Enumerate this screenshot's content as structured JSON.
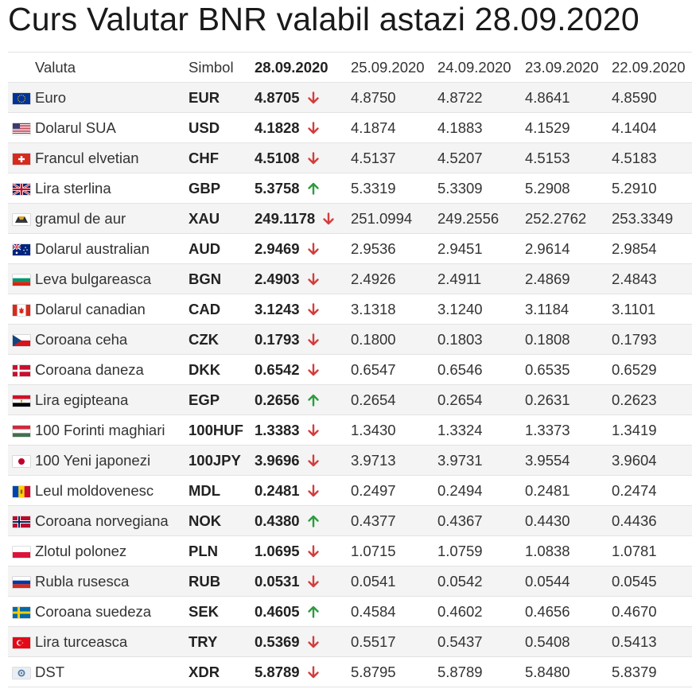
{
  "title": "Curs Valutar BNR valabil astazi 28.09.2020",
  "colors": {
    "down": "#d43c3c",
    "up": "#2e9b3e",
    "row_alt": "#f4f4f4"
  },
  "header": {
    "valuta": "Valuta",
    "simbol": "Simbol",
    "dates": [
      "28.09.2020",
      "25.09.2020",
      "24.09.2020",
      "23.09.2020",
      "22.09.2020"
    ]
  },
  "rows": [
    {
      "flag": "eu-flag-icon",
      "name": "Euro",
      "symbol": "EUR",
      "current": "4.8705",
      "trend": "down",
      "history": [
        "4.8750",
        "4.8722",
        "4.8641",
        "4.8590"
      ]
    },
    {
      "flag": "us-flag-icon",
      "name": "Dolarul SUA",
      "symbol": "USD",
      "current": "4.1828",
      "trend": "down",
      "history": [
        "4.1874",
        "4.1883",
        "4.1529",
        "4.1404"
      ]
    },
    {
      "flag": "ch-flag-icon",
      "name": "Francul elvetian",
      "symbol": "CHF",
      "current": "4.5108",
      "trend": "down",
      "history": [
        "4.5137",
        "4.5207",
        "4.5153",
        "4.5183"
      ]
    },
    {
      "flag": "gb-flag-icon",
      "name": "Lira sterlina",
      "symbol": "GBP",
      "current": "5.3758",
      "trend": "up",
      "history": [
        "5.3319",
        "5.3309",
        "5.2908",
        "5.2910"
      ]
    },
    {
      "flag": "gold-icon",
      "name": "gramul de aur",
      "symbol": "XAU",
      "current": "249.1178",
      "trend": "down",
      "history": [
        "251.0994",
        "249.2556",
        "252.2762",
        "253.3349"
      ]
    },
    {
      "flag": "au-flag-icon",
      "name": "Dolarul australian",
      "symbol": "AUD",
      "current": "2.9469",
      "trend": "down",
      "history": [
        "2.9536",
        "2.9451",
        "2.9614",
        "2.9854"
      ]
    },
    {
      "flag": "bg-flag-icon",
      "name": "Leva bulgareasca",
      "symbol": "BGN",
      "current": "2.4903",
      "trend": "down",
      "history": [
        "2.4926",
        "2.4911",
        "2.4869",
        "2.4843"
      ]
    },
    {
      "flag": "ca-flag-icon",
      "name": "Dolarul canadian",
      "symbol": "CAD",
      "current": "3.1243",
      "trend": "down",
      "history": [
        "3.1318",
        "3.1240",
        "3.1184",
        "3.1101"
      ]
    },
    {
      "flag": "cz-flag-icon",
      "name": "Coroana ceha",
      "symbol": "CZK",
      "current": "0.1793",
      "trend": "down",
      "history": [
        "0.1800",
        "0.1803",
        "0.1808",
        "0.1793"
      ]
    },
    {
      "flag": "dk-flag-icon",
      "name": "Coroana daneza",
      "symbol": "DKK",
      "current": "0.6542",
      "trend": "down",
      "history": [
        "0.6547",
        "0.6546",
        "0.6535",
        "0.6529"
      ]
    },
    {
      "flag": "eg-flag-icon",
      "name": "Lira egipteana",
      "symbol": "EGP",
      "current": "0.2656",
      "trend": "up",
      "history": [
        "0.2654",
        "0.2654",
        "0.2631",
        "0.2623"
      ]
    },
    {
      "flag": "hu-flag-icon",
      "name": "100 Forinti maghiari",
      "symbol": "100HUF",
      "current": "1.3383",
      "trend": "down",
      "history": [
        "1.3430",
        "1.3324",
        "1.3373",
        "1.3419"
      ]
    },
    {
      "flag": "jp-flag-icon",
      "name": "100 Yeni japonezi",
      "symbol": "100JPY",
      "current": "3.9696",
      "trend": "down",
      "history": [
        "3.9713",
        "3.9731",
        "3.9554",
        "3.9604"
      ]
    },
    {
      "flag": "md-flag-icon",
      "name": "Leul moldovenesc",
      "symbol": "MDL",
      "current": "0.2481",
      "trend": "down",
      "history": [
        "0.2497",
        "0.2494",
        "0.2481",
        "0.2474"
      ]
    },
    {
      "flag": "no-flag-icon",
      "name": "Coroana norvegiana",
      "symbol": "NOK",
      "current": "0.4380",
      "trend": "up",
      "history": [
        "0.4377",
        "0.4367",
        "0.4430",
        "0.4436"
      ]
    },
    {
      "flag": "pl-flag-icon",
      "name": "Zlotul polonez",
      "symbol": "PLN",
      "current": "1.0695",
      "trend": "down",
      "history": [
        "1.0715",
        "1.0759",
        "1.0838",
        "1.0781"
      ]
    },
    {
      "flag": "ru-flag-icon",
      "name": "Rubla rusesca",
      "symbol": "RUB",
      "current": "0.0531",
      "trend": "down",
      "history": [
        "0.0541",
        "0.0542",
        "0.0544",
        "0.0545"
      ]
    },
    {
      "flag": "se-flag-icon",
      "name": "Coroana suedeza",
      "symbol": "SEK",
      "current": "0.4605",
      "trend": "up",
      "history": [
        "0.4584",
        "0.4602",
        "0.4656",
        "0.4670"
      ]
    },
    {
      "flag": "tr-flag-icon",
      "name": "Lira turceasca",
      "symbol": "TRY",
      "current": "0.5369",
      "trend": "down",
      "history": [
        "0.5517",
        "0.5437",
        "0.5408",
        "0.5413"
      ]
    },
    {
      "flag": "xdr-icon",
      "name": "DST",
      "symbol": "XDR",
      "current": "5.8789",
      "trend": "down",
      "history": [
        "5.8795",
        "5.8789",
        "5.8480",
        "5.8379"
      ]
    }
  ]
}
